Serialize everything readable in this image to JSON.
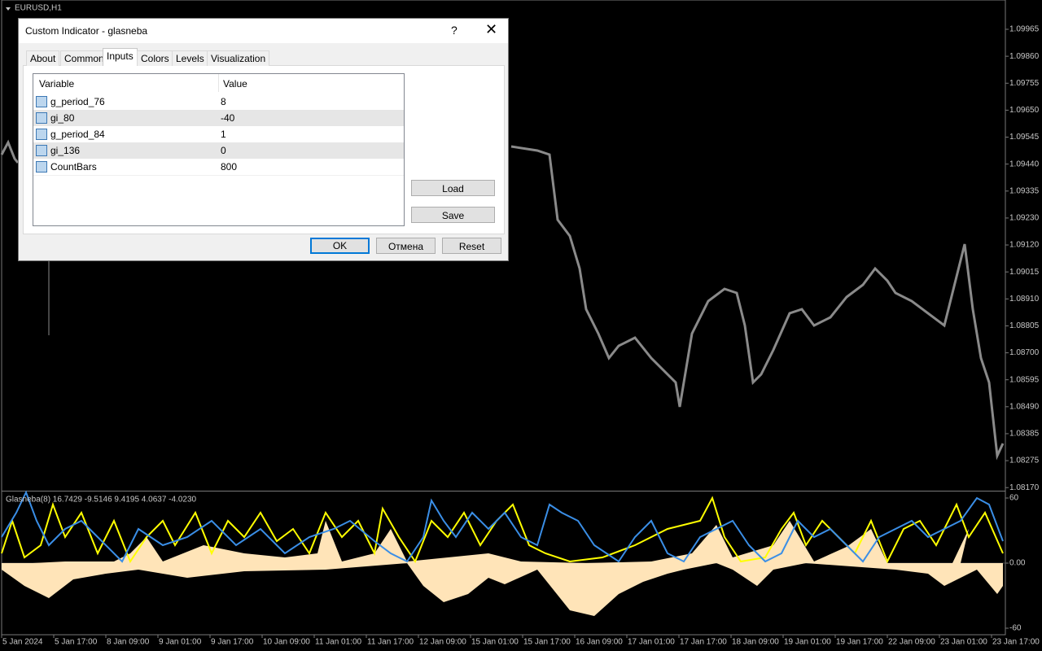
{
  "chart": {
    "symbol": "EURUSD,H1",
    "price_axis": [
      "1.09965",
      "1.09860",
      "1.09755",
      "1.09650",
      "1.09545",
      "1.09440",
      "1.09335",
      "1.09230",
      "1.09120",
      "1.09015",
      "1.08910",
      "1.08805",
      "1.08700",
      "1.08595",
      "1.08490",
      "1.08385",
      "1.08275",
      "1.08170"
    ],
    "indicator_label": "Glasneba(8) 16.7429 -9.5146 9.4195 4.0637 -4.0230",
    "indicator_axis": [
      "60",
      "0.00",
      "-60"
    ],
    "time_axis": [
      "5 Jan 2024",
      "5 Jan 17:00",
      "8 Jan 09:00",
      "9 Jan 01:00",
      "9 Jan 17:00",
      "10 Jan 09:00",
      "11 Jan 01:00",
      "11 Jan 17:00",
      "12 Jan 09:00",
      "15 Jan 01:00",
      "15 Jan 17:00",
      "16 Jan 09:00",
      "17 Jan 01:00",
      "17 Jan 17:00",
      "18 Jan 09:00",
      "19 Jan 01:00",
      "19 Jan 17:00",
      "22 Jan 09:00",
      "23 Jan 01:00",
      "23 Jan 17:00"
    ]
  },
  "dialog": {
    "title": "Custom Indicator - glasneba",
    "help": "?",
    "tabs": [
      "About",
      "Common",
      "Inputs",
      "Colors",
      "Levels",
      "Visualization"
    ],
    "table": {
      "headers": [
        "Variable",
        "Value"
      ],
      "rows": [
        [
          "g_period_76",
          "8"
        ],
        [
          "gi_80",
          "-40"
        ],
        [
          "g_period_84",
          "1"
        ],
        [
          "gi_136",
          "0"
        ],
        [
          "CountBars",
          "800"
        ]
      ]
    },
    "buttons": {
      "load": "Load",
      "save": "Save",
      "ok": "OK",
      "cancel": "Отмена",
      "reset": "Reset"
    }
  }
}
